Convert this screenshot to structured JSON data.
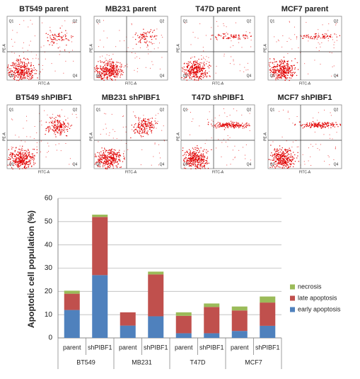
{
  "flow_panels": {
    "titles": [
      "BT549 parent",
      "MB231 parent",
      "T47D parent",
      "MCF7 parent",
      "BT549 shPIBF1",
      "MB231 shPIBF1",
      "T47D shPIBF1",
      "MCF7 shPIBF1"
    ],
    "quadrant_labels": [
      "Q1",
      "Q2",
      "Q3",
      "Q4"
    ],
    "x_label": "FITC-A",
    "y_label": "PE-A"
  },
  "chart_data": {
    "type": "bar",
    "stacked": true,
    "y_label": "Apoptotic cell population (%)",
    "categories": [
      "parent",
      "shPIBF1",
      "parent",
      "shPIBF1",
      "parent",
      "shPIBF1",
      "parent",
      "shPIBF1"
    ],
    "groups": [
      "BT549",
      "MB231",
      "T47D",
      "MCF7"
    ],
    "series": [
      {
        "name": "early apoptosis",
        "color": "#4f81bd",
        "values": [
          12,
          27,
          5.3,
          9.3,
          2,
          2,
          3,
          5.2
        ]
      },
      {
        "name": "late apoptosis",
        "color": "#c0504d",
        "values": [
          7,
          25,
          5.7,
          18,
          7.5,
          11.3,
          8.8,
          10
        ]
      },
      {
        "name": "necrosis",
        "color": "#9bbb59",
        "values": [
          1.3,
          1,
          0,
          1.2,
          1.5,
          1.5,
          1.7,
          2.6
        ]
      }
    ],
    "ylim": [
      0,
      60
    ],
    "yticks": [
      0,
      10,
      20,
      30,
      40,
      50,
      60
    ],
    "grid": true,
    "legend": "right"
  }
}
